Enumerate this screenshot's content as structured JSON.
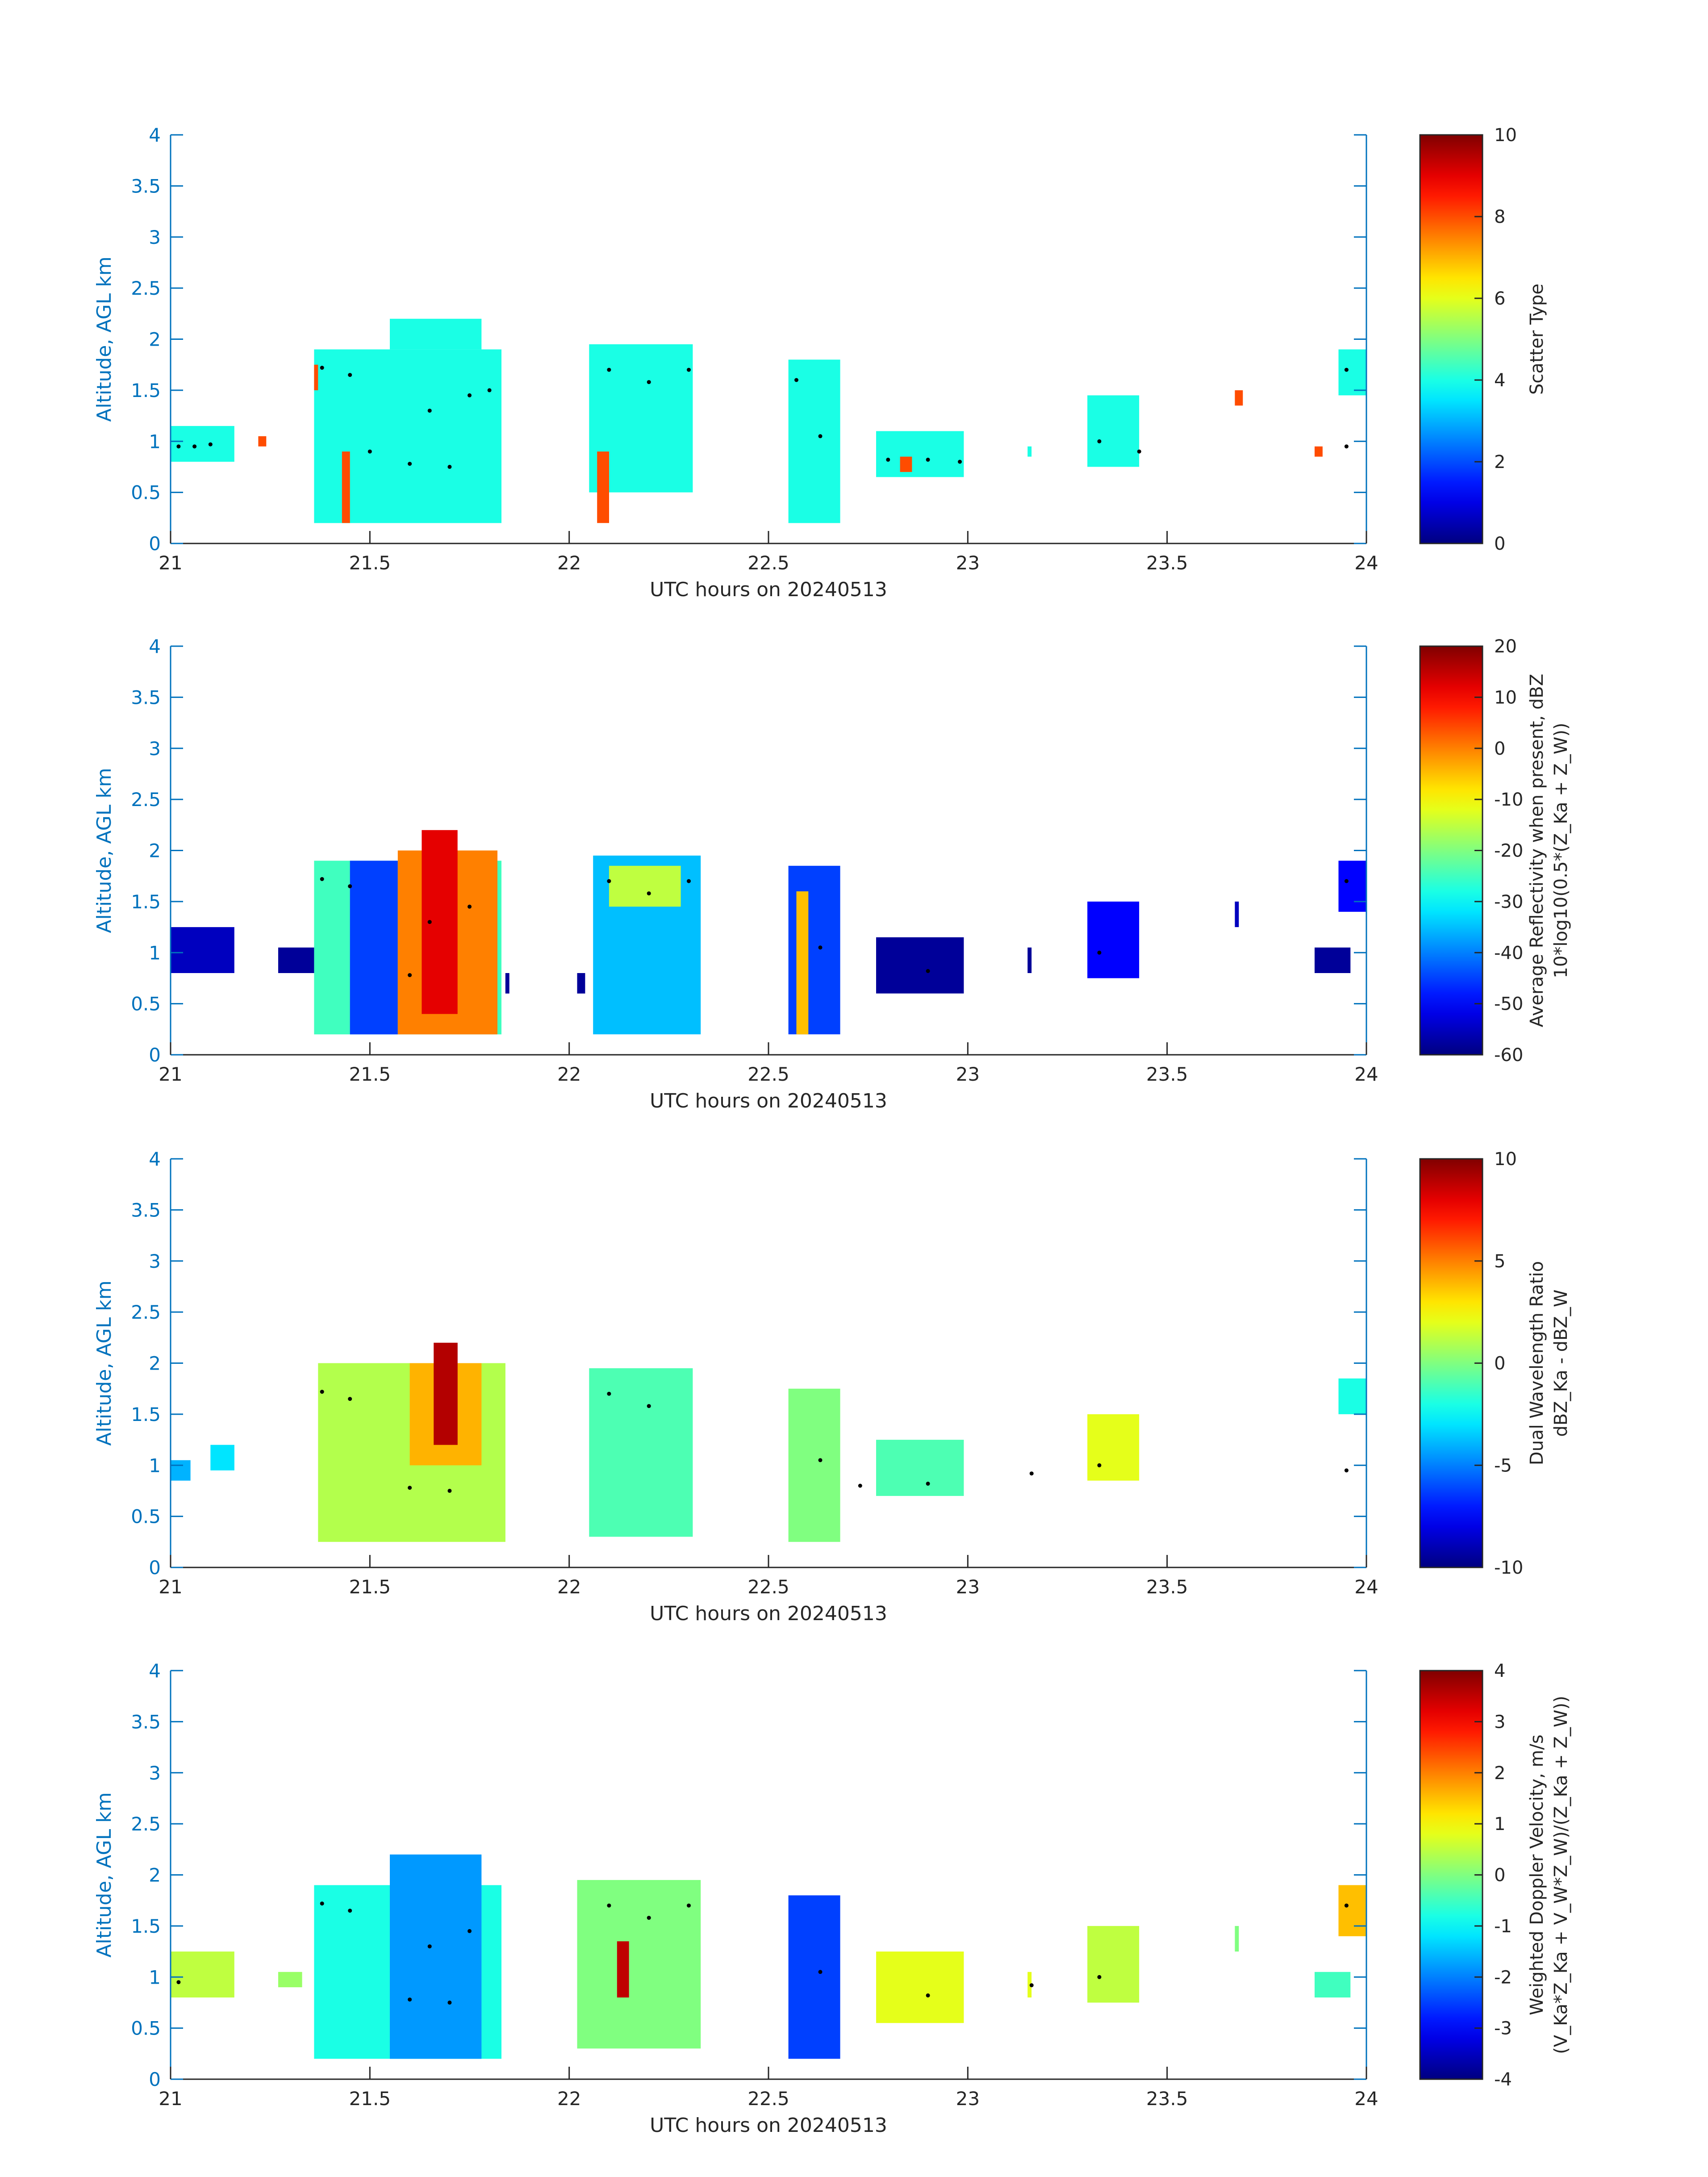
{
  "figure": {
    "xlabel": "UTC hours on 20240513",
    "ylabel": "Altitude, AGL km",
    "xlim": [
      21,
      24
    ],
    "ylim": [
      0,
      4
    ],
    "xticks": [
      "21",
      "21.5",
      "22",
      "22.5",
      "23",
      "23.5",
      "24"
    ],
    "yticks": [
      "0",
      "0.5",
      "1",
      "1.5",
      "2",
      "2.5",
      "3",
      "3.5",
      "4"
    ],
    "axis_color": "#0072BD",
    "text_color": "#262626"
  },
  "chart_data": [
    {
      "type": "heatmap",
      "title": "",
      "xlabel": "UTC hours on 20240513",
      "ylabel": "Altitude, AGL km",
      "colorbar_label_lines": [
        "Scatter Type"
      ],
      "colorbar_ticks": [
        "0",
        "2",
        "4",
        "6",
        "8",
        "10"
      ],
      "clim": [
        0,
        10
      ],
      "colormap": "jet",
      "cells": [
        {
          "x": [
            21.0,
            21.16
          ],
          "y": [
            0.8,
            1.15
          ],
          "v": 4
        },
        {
          "x": [
            21.22,
            21.24
          ],
          "y": [
            0.95,
            1.05
          ],
          "v": 8
        },
        {
          "x": [
            21.36,
            21.83
          ],
          "y": [
            0.2,
            1.9
          ],
          "v": 4
        },
        {
          "x": [
            21.55,
            21.78
          ],
          "y": [
            1.9,
            2.2
          ],
          "v": 4
        },
        {
          "x": [
            21.43,
            21.45
          ],
          "y": [
            0.2,
            0.9
          ],
          "v": 8
        },
        {
          "x": [
            21.36,
            21.37
          ],
          "y": [
            1.5,
            1.75
          ],
          "v": 8
        },
        {
          "x": [
            22.05,
            22.31
          ],
          "y": [
            0.5,
            1.95
          ],
          "v": 4
        },
        {
          "x": [
            22.07,
            22.1
          ],
          "y": [
            0.2,
            0.9
          ],
          "v": 8
        },
        {
          "x": [
            22.55,
            22.68
          ],
          "y": [
            0.2,
            1.8
          ],
          "v": 4
        },
        {
          "x": [
            22.77,
            22.99
          ],
          "y": [
            0.65,
            1.1
          ],
          "v": 4
        },
        {
          "x": [
            22.83,
            22.86
          ],
          "y": [
            0.7,
            0.85
          ],
          "v": 8
        },
        {
          "x": [
            23.15,
            23.16
          ],
          "y": [
            0.85,
            0.95
          ],
          "v": 4
        },
        {
          "x": [
            23.3,
            23.43
          ],
          "y": [
            0.75,
            1.45
          ],
          "v": 4
        },
        {
          "x": [
            23.67,
            23.69
          ],
          "y": [
            1.35,
            1.5
          ],
          "v": 8
        },
        {
          "x": [
            23.87,
            23.89
          ],
          "y": [
            0.85,
            0.95
          ],
          "v": 8
        },
        {
          "x": [
            23.93,
            24.0
          ],
          "y": [
            1.45,
            1.9
          ],
          "v": 4
        }
      ],
      "points": [
        {
          "x": 21.02,
          "y": 0.95
        },
        {
          "x": 21.06,
          "y": 0.95
        },
        {
          "x": 21.1,
          "y": 0.97
        },
        {
          "x": 21.38,
          "y": 1.72
        },
        {
          "x": 21.45,
          "y": 1.65
        },
        {
          "x": 21.5,
          "y": 0.9
        },
        {
          "x": 21.6,
          "y": 0.78
        },
        {
          "x": 21.65,
          "y": 1.3
        },
        {
          "x": 21.7,
          "y": 0.75
        },
        {
          "x": 21.75,
          "y": 1.45
        },
        {
          "x": 21.8,
          "y": 1.5
        },
        {
          "x": 22.1,
          "y": 1.7
        },
        {
          "x": 22.2,
          "y": 1.58
        },
        {
          "x": 22.3,
          "y": 1.7
        },
        {
          "x": 22.57,
          "y": 1.6
        },
        {
          "x": 22.63,
          "y": 1.05
        },
        {
          "x": 22.8,
          "y": 0.82
        },
        {
          "x": 22.9,
          "y": 0.82
        },
        {
          "x": 22.98,
          "y": 0.8
        },
        {
          "x": 23.33,
          "y": 1.0
        },
        {
          "x": 23.43,
          "y": 0.9
        },
        {
          "x": 23.95,
          "y": 1.7
        },
        {
          "x": 23.95,
          "y": 0.95
        }
      ]
    },
    {
      "type": "heatmap",
      "title": "",
      "xlabel": "UTC hours on 20240513",
      "ylabel": "Altitude, AGL km",
      "colorbar_label_lines": [
        "Average Reflectivity when present, dBZ",
        "10*log10(0.5*(Z_Ka + Z_W))"
      ],
      "colorbar_ticks": [
        "-60",
        "-50",
        "-40",
        "-30",
        "-20",
        "-10",
        "0",
        "10",
        "20"
      ],
      "clim": [
        -60,
        20
      ],
      "colormap": "jet",
      "cells": [
        {
          "x": [
            21.0,
            21.16
          ],
          "y": [
            0.8,
            1.25
          ],
          "v": -55
        },
        {
          "x": [
            21.27,
            21.38
          ],
          "y": [
            0.8,
            1.05
          ],
          "v": -58
        },
        {
          "x": [
            21.36,
            21.83
          ],
          "y": [
            0.2,
            1.9
          ],
          "v": -25
        },
        {
          "x": [
            21.45,
            21.57
          ],
          "y": [
            0.2,
            1.9
          ],
          "v": -45
        },
        {
          "x": [
            21.57,
            21.82
          ],
          "y": [
            0.2,
            2.0
          ],
          "v": 0
        },
        {
          "x": [
            21.63,
            21.72
          ],
          "y": [
            0.4,
            2.2
          ],
          "v": 12
        },
        {
          "x": [
            21.84,
            21.85
          ],
          "y": [
            0.6,
            0.8
          ],
          "v": -58
        },
        {
          "x": [
            22.02,
            22.04
          ],
          "y": [
            0.6,
            0.8
          ],
          "v": -58
        },
        {
          "x": [
            22.06,
            22.33
          ],
          "y": [
            0.2,
            1.95
          ],
          "v": -35
        },
        {
          "x": [
            22.1,
            22.28
          ],
          "y": [
            1.45,
            1.85
          ],
          "v": -15
        },
        {
          "x": [
            22.55,
            22.68
          ],
          "y": [
            0.2,
            1.85
          ],
          "v": -45
        },
        {
          "x": [
            22.57,
            22.6
          ],
          "y": [
            0.2,
            1.6
          ],
          "v": -5
        },
        {
          "x": [
            22.77,
            22.99
          ],
          "y": [
            0.6,
            1.15
          ],
          "v": -58
        },
        {
          "x": [
            23.15,
            23.16
          ],
          "y": [
            0.8,
            1.05
          ],
          "v": -58
        },
        {
          "x": [
            23.3,
            23.43
          ],
          "y": [
            0.75,
            1.5
          ],
          "v": -50
        },
        {
          "x": [
            23.67,
            23.68
          ],
          "y": [
            1.25,
            1.5
          ],
          "v": -55
        },
        {
          "x": [
            23.93,
            24.0
          ],
          "y": [
            1.4,
            1.9
          ],
          "v": -50
        },
        {
          "x": [
            23.87,
            23.96
          ],
          "y": [
            0.8,
            1.05
          ],
          "v": -58
        }
      ],
      "points": [
        {
          "x": 21.38,
          "y": 1.72
        },
        {
          "x": 21.45,
          "y": 1.65
        },
        {
          "x": 21.6,
          "y": 0.78
        },
        {
          "x": 21.65,
          "y": 1.3
        },
        {
          "x": 21.75,
          "y": 1.45
        },
        {
          "x": 22.1,
          "y": 1.7
        },
        {
          "x": 22.2,
          "y": 1.58
        },
        {
          "x": 22.3,
          "y": 1.7
        },
        {
          "x": 22.63,
          "y": 1.05
        },
        {
          "x": 22.9,
          "y": 0.82
        },
        {
          "x": 23.33,
          "y": 1.0
        },
        {
          "x": 23.95,
          "y": 1.7
        }
      ]
    },
    {
      "type": "heatmap",
      "title": "",
      "xlabel": "UTC hours on 20240513",
      "ylabel": "Altitude, AGL km",
      "colorbar_label_lines": [
        "Dual Wavelength Ratio",
        "dBZ_Ka - dBZ_W"
      ],
      "colorbar_ticks": [
        "-10",
        "-5",
        "0",
        "5",
        "10"
      ],
      "clim": [
        -10,
        10
      ],
      "colormap": "jet",
      "cells": [
        {
          "x": [
            21.0,
            21.05
          ],
          "y": [
            0.85,
            1.05
          ],
          "v": -4
        },
        {
          "x": [
            21.1,
            21.16
          ],
          "y": [
            0.95,
            1.2
          ],
          "v": -3
        },
        {
          "x": [
            21.37,
            21.84
          ],
          "y": [
            0.25,
            2.0
          ],
          "v": 1
        },
        {
          "x": [
            21.6,
            21.78
          ],
          "y": [
            1.0,
            2.0
          ],
          "v": 4
        },
        {
          "x": [
            21.66,
            21.72
          ],
          "y": [
            1.2,
            2.2
          ],
          "v": 9
        },
        {
          "x": [
            22.05,
            22.31
          ],
          "y": [
            0.3,
            1.95
          ],
          "v": -1
        },
        {
          "x": [
            22.55,
            22.68
          ],
          "y": [
            0.25,
            1.75
          ],
          "v": 0
        },
        {
          "x": [
            22.77,
            22.99
          ],
          "y": [
            0.7,
            1.25
          ],
          "v": -1
        },
        {
          "x": [
            23.3,
            23.43
          ],
          "y": [
            0.85,
            1.5
          ],
          "v": 2
        },
        {
          "x": [
            23.93,
            24.0
          ],
          "y": [
            1.5,
            1.85
          ],
          "v": -2
        }
      ],
      "points": [
        {
          "x": 21.38,
          "y": 1.72
        },
        {
          "x": 21.45,
          "y": 1.65
        },
        {
          "x": 21.6,
          "y": 0.78
        },
        {
          "x": 21.7,
          "y": 0.75
        },
        {
          "x": 22.1,
          "y": 1.7
        },
        {
          "x": 22.2,
          "y": 1.58
        },
        {
          "x": 22.63,
          "y": 1.05
        },
        {
          "x": 22.73,
          "y": 0.8
        },
        {
          "x": 22.9,
          "y": 0.82
        },
        {
          "x": 23.16,
          "y": 0.92
        },
        {
          "x": 23.33,
          "y": 1.0
        },
        {
          "x": 23.95,
          "y": 0.95
        }
      ]
    },
    {
      "type": "heatmap",
      "title": "",
      "xlabel": "UTC hours on 20240513",
      "ylabel": "Altitude, AGL km",
      "colorbar_label_lines": [
        "Weighted Doppler Velocity, m/s",
        "(V_Ka*Z_Ka + V_W*Z_W)/(Z_Ka + Z_W))"
      ],
      "colorbar_ticks": [
        "-4",
        "-3",
        "-2",
        "-1",
        "0",
        "1",
        "2",
        "3",
        "4"
      ],
      "clim": [
        -4,
        4
      ],
      "colormap": "jet",
      "cells": [
        {
          "x": [
            21.0,
            21.16
          ],
          "y": [
            0.8,
            1.25
          ],
          "v": 0.5
        },
        {
          "x": [
            21.27,
            21.33
          ],
          "y": [
            0.9,
            1.05
          ],
          "v": 0.2
        },
        {
          "x": [
            21.36,
            21.83
          ],
          "y": [
            0.2,
            1.9
          ],
          "v": -0.8
        },
        {
          "x": [
            21.55,
            21.78
          ],
          "y": [
            0.2,
            2.2
          ],
          "v": -1.8
        },
        {
          "x": [
            22.02,
            22.33
          ],
          "y": [
            0.3,
            1.95
          ],
          "v": 0
        },
        {
          "x": [
            22.12,
            22.15
          ],
          "y": [
            0.8,
            1.35
          ],
          "v": 3.5
        },
        {
          "x": [
            22.55,
            22.68
          ],
          "y": [
            0.2,
            1.8
          ],
          "v": -2.5
        },
        {
          "x": [
            22.77,
            22.99
          ],
          "y": [
            0.55,
            1.25
          ],
          "v": 0.8
        },
        {
          "x": [
            23.15,
            23.16
          ],
          "y": [
            0.8,
            1.05
          ],
          "v": 0.8
        },
        {
          "x": [
            23.3,
            23.43
          ],
          "y": [
            0.75,
            1.5
          ],
          "v": 0.5
        },
        {
          "x": [
            23.67,
            23.68
          ],
          "y": [
            1.25,
            1.5
          ],
          "v": 0
        },
        {
          "x": [
            23.93,
            24.0
          ],
          "y": [
            1.4,
            1.9
          ],
          "v": 1.5
        },
        {
          "x": [
            23.87,
            23.96
          ],
          "y": [
            0.8,
            1.05
          ],
          "v": -0.5
        }
      ],
      "points": [
        {
          "x": 21.02,
          "y": 0.95
        },
        {
          "x": 21.38,
          "y": 1.72
        },
        {
          "x": 21.45,
          "y": 1.65
        },
        {
          "x": 21.6,
          "y": 0.78
        },
        {
          "x": 21.65,
          "y": 1.3
        },
        {
          "x": 21.7,
          "y": 0.75
        },
        {
          "x": 21.75,
          "y": 1.45
        },
        {
          "x": 22.1,
          "y": 1.7
        },
        {
          "x": 22.2,
          "y": 1.58
        },
        {
          "x": 22.3,
          "y": 1.7
        },
        {
          "x": 22.63,
          "y": 1.05
        },
        {
          "x": 22.9,
          "y": 0.82
        },
        {
          "x": 23.16,
          "y": 0.92
        },
        {
          "x": 23.33,
          "y": 1.0
        },
        {
          "x": 23.95,
          "y": 1.7
        }
      ]
    }
  ]
}
